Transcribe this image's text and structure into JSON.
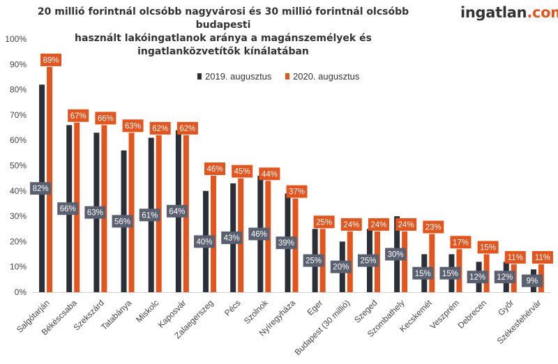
{
  "title_line1": "20 millió forintnál olcsóbb nagyvárosi és 30 millió forintnál olcsóbb budapesti",
  "title_line2": "használt lakóingatlanok aránya a magánszemélyek és ingatlanközvetítők kínálatában",
  "logo": {
    "main": "ingatlan",
    "dot": ".",
    "tld": "com"
  },
  "colors": {
    "series_2019": "#2b2f38",
    "series_2020": "#e3551f",
    "label_bg_2019": "#5a6070",
    "label_bg_2020": "#e3551f",
    "grid": "#e3e3e3"
  },
  "chart_data": {
    "type": "bar",
    "categories": [
      "Salgótarján",
      "Békéscsaba",
      "Szekszárd",
      "Tatabánya",
      "Miskolc",
      "Kaposvár",
      "Zalaegerszeg",
      "Pécs",
      "Szolnok",
      "Nyíregyháza",
      "Eger",
      "Budapest (30 millió)",
      "Szeged",
      "Szombathely",
      "Kecskemét",
      "Veszprém",
      "Debrecen",
      "Győr",
      "Székesfehérvár"
    ],
    "series": [
      {
        "name": "2019. augusztus",
        "values": [
          82,
          66,
          63,
          56,
          61,
          64,
          40,
          43,
          46,
          39,
          25,
          20,
          25,
          30,
          15,
          15,
          12,
          12,
          9
        ],
        "labels": [
          "82%",
          "66%",
          "63%",
          "56%",
          "61%",
          "64%",
          "40%",
          "43%",
          "46%",
          "39%",
          "25%",
          "20%",
          "25%",
          "30%",
          "15%",
          "15%",
          "12%",
          "12%",
          "9%"
        ]
      },
      {
        "name": "2020. augusztus",
        "values": [
          89,
          67,
          66,
          63,
          62,
          62,
          46,
          45,
          44,
          37,
          25,
          24,
          24,
          24,
          23,
          17,
          15,
          11,
          11
        ],
        "labels": [
          "89%",
          "67%",
          "66%",
          "63%",
          "62%",
          "62%",
          "46%",
          "45%",
          "44%",
          "37%",
          "25%",
          "24%",
          "24%",
          "24%",
          "23%",
          "17%",
          "15%",
          "11%",
          "11%"
        ]
      }
    ],
    "ylim": [
      0,
      100
    ],
    "yticks": [
      "0%",
      "10%",
      "20%",
      "30%",
      "40%",
      "50%",
      "60%",
      "70%",
      "80%",
      "90%",
      "100%"
    ],
    "grid": false,
    "legend": "top-center"
  }
}
